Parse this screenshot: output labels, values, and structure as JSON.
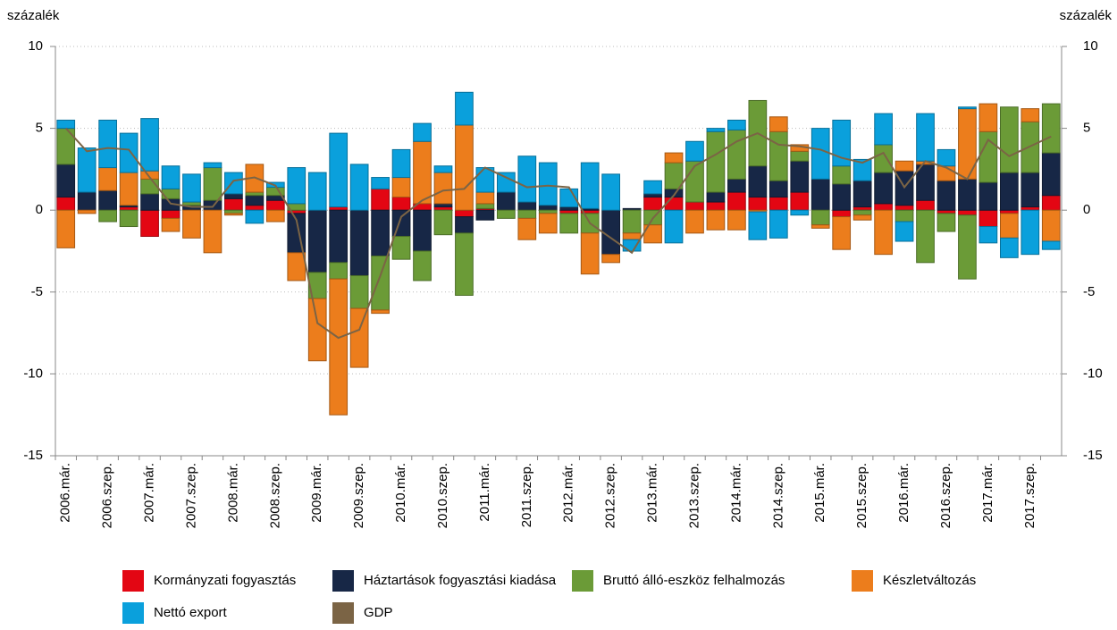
{
  "chart_data": {
    "type": "bar",
    "stacked": true,
    "y_label": "százalék",
    "y2_label": "százalék",
    "categories": [
      "2006.már.",
      null,
      "2006.szep.",
      null,
      "2007.már.",
      null,
      "2007.szep.",
      null,
      "2008.már.",
      null,
      "2008.szep.",
      null,
      "2009.már.",
      null,
      "2009.szep.",
      null,
      "2010.már.",
      null,
      "2010.szep.",
      null,
      "2011.már.",
      null,
      "2011.szep.",
      null,
      "2012.már.",
      null,
      "2012.szep.",
      null,
      "2013.már.",
      null,
      "2013.szep.",
      null,
      "2014.már.",
      null,
      "2014.szep.",
      null,
      "2015.már.",
      null,
      "2015.szep.",
      null,
      "2016.már.",
      null,
      "2016.szep.",
      null,
      "2017.már.",
      null,
      "2017.szep.",
      null
    ],
    "series": [
      {
        "name": "Kormányzati fogyasztás",
        "color": "#e30613",
        "values": [
          0.8,
          0,
          0,
          0.2,
          -1.6,
          -0.5,
          0,
          0,
          0.7,
          0.3,
          0.6,
          -0.2,
          0,
          0.2,
          0,
          1.3,
          0.8,
          0.4,
          0.2,
          -0.4,
          0.1,
          0,
          0,
          0,
          -0.2,
          -0.2,
          0,
          0,
          0.8,
          0.8,
          0.5,
          0.5,
          1.1,
          0.8,
          0.8,
          1.1,
          0,
          -0.4,
          0.2,
          0.4,
          0.3,
          0.6,
          -0.2,
          -0.3,
          -1.0,
          -0.2,
          0.2,
          0.9
        ]
      },
      {
        "name": "Háztartások fogyasztási kiadása",
        "color": "#172746",
        "values": [
          2.0,
          1.1,
          1.2,
          0.1,
          1.0,
          0.7,
          0.3,
          0.6,
          0.3,
          0.6,
          0.3,
          -2.4,
          -3.8,
          -3.2,
          -4.0,
          -2.8,
          -1.6,
          -2.5,
          0.2,
          -1.0,
          -0.6,
          1.1,
          0.5,
          0.3,
          0.2,
          0.1,
          -2.7,
          0.1,
          0.2,
          0.5,
          0,
          0.6,
          0.8,
          1.9,
          1.0,
          1.9,
          1.9,
          1.6,
          1.6,
          1.9,
          2.1,
          2.2,
          1.8,
          1.9,
          1.7,
          2.3,
          2.1,
          2.6
        ]
      },
      {
        "name": "Bruttó álló-eszköz felhalmozás",
        "color": "#6b9b37",
        "values": [
          2.2,
          0,
          -0.7,
          -1.0,
          0.9,
          0.6,
          0.2,
          2.0,
          -0.2,
          0.2,
          0.5,
          0.4,
          -1.6,
          -1.0,
          -2.0,
          -3.3,
          -1.4,
          -1.8,
          -1.5,
          -3.8,
          0.3,
          -0.5,
          -0.5,
          -0.2,
          -1.2,
          -1.2,
          0,
          -1.4,
          -0.9,
          1.6,
          2.5,
          3.7,
          3.0,
          4.0,
          3.0,
          0.6,
          -0.9,
          1.1,
          -0.3,
          1.7,
          -0.7,
          -3.2,
          -1.1,
          -3.9,
          3.1,
          4.0,
          3.1,
          3.0
        ]
      },
      {
        "name": "Készletváltozás",
        "color": "#ec7d1c",
        "values": [
          -2.3,
          -0.2,
          1.4,
          2.0,
          0.5,
          -0.8,
          -1.7,
          -2.6,
          -0.1,
          1.7,
          -0.7,
          -1.7,
          -3.8,
          -8.3,
          -3.6,
          -0.2,
          1.2,
          3.8,
          1.9,
          5.2,
          0.7,
          0,
          -1.3,
          -1.2,
          0,
          -2.5,
          -0.5,
          -0.4,
          -1.1,
          0.6,
          -1.4,
          -1.2,
          -1.2,
          -0.1,
          0.9,
          0.4,
          -0.2,
          -2.0,
          -0.3,
          -2.7,
          0.6,
          0.2,
          0.9,
          4.3,
          1.7,
          -1.5,
          0.8,
          -1.9
        ]
      },
      {
        "name": "Nettó export",
        "color": "#0aa0dc",
        "values": [
          0.5,
          2.7,
          2.9,
          2.4,
          3.2,
          1.4,
          1.7,
          0.3,
          1.3,
          -0.8,
          0.3,
          2.2,
          2.3,
          4.5,
          2.8,
          0.7,
          1.7,
          1.1,
          0.4,
          2.0,
          1.5,
          1.2,
          2.8,
          2.6,
          1.1,
          2.8,
          2.2,
          -0.7,
          0.8,
          -2.0,
          1.2,
          0.2,
          0.6,
          -1.7,
          -1.7,
          -0.3,
          3.1,
          2.8,
          1.3,
          1.9,
          -1.2,
          2.9,
          1.0,
          0.1,
          -1.0,
          -1.2,
          -2.7,
          -0.5
        ]
      },
      {
        "name": "GDP",
        "type": "line",
        "color": "#7b6445",
        "values": [
          5.0,
          3.6,
          3.8,
          3.7,
          2.0,
          0.4,
          0.2,
          0.2,
          1.8,
          2.0,
          1.5,
          -0.6,
          -6.9,
          -7.8,
          -7.3,
          -4.0,
          -0.4,
          0.6,
          1.2,
          1.3,
          2.6,
          2.0,
          1.4,
          1.5,
          1.4,
          -0.8,
          -1.7,
          -2.6,
          -0.5,
          0.9,
          2.7,
          3.4,
          4.2,
          4.7,
          4.0,
          3.9,
          3.7,
          3.2,
          2.9,
          3.5,
          1.4,
          3.0,
          2.6,
          1.9,
          4.3,
          3.3,
          3.9,
          4.5
        ]
      }
    ],
    "ylim": [
      -15,
      10
    ],
    "yticks": [
      -15,
      -10,
      -5,
      0,
      5,
      10
    ],
    "y2lim": [
      -15,
      10
    ],
    "y2ticks": [
      -15,
      -10,
      -5,
      0,
      5,
      10
    ],
    "grid": true,
    "legend": "bottom"
  }
}
